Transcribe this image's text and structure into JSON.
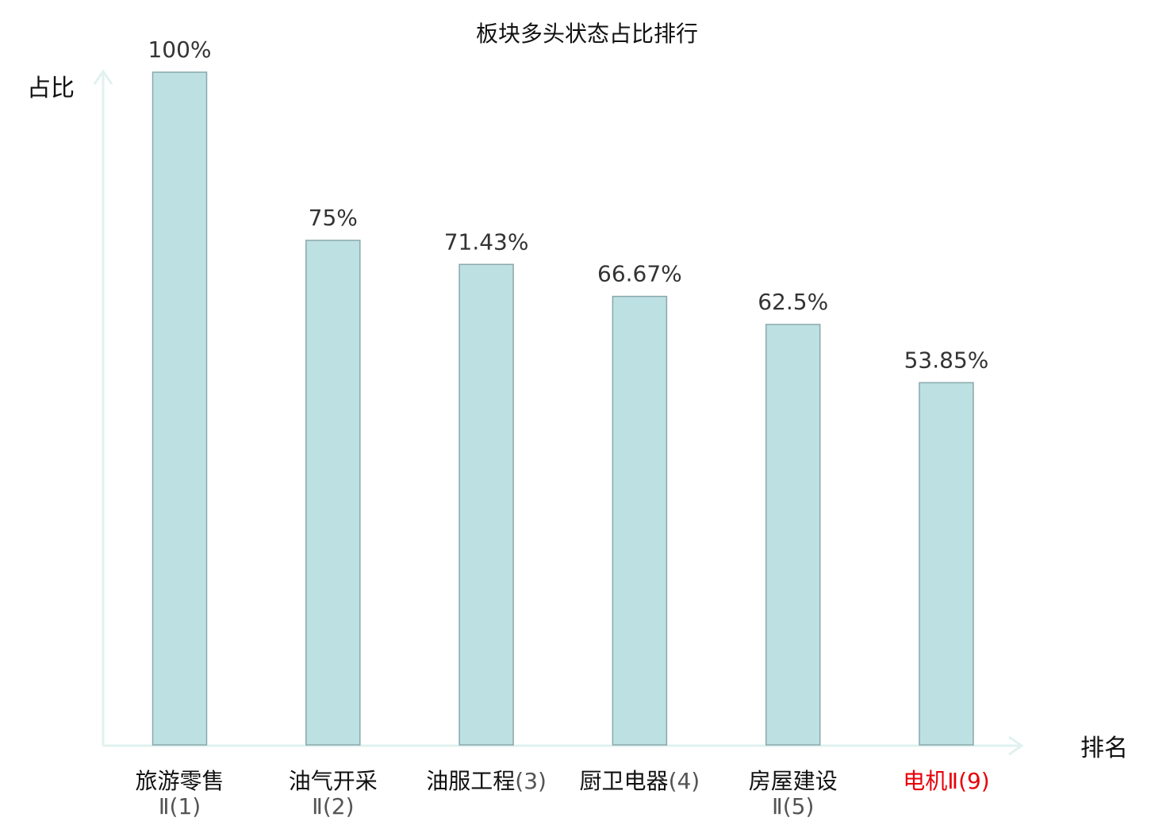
{
  "chart_data": {
    "type": "bar",
    "title": "板块多头状态占比排行",
    "ylabel": "占比",
    "xlabel": "排名",
    "ylim": [
      0,
      100
    ],
    "grid": false,
    "categories": [
      {
        "name": "旅游零售",
        "suffix": "Ⅱ(1)",
        "highlight": false
      },
      {
        "name": "油气开采",
        "suffix": "Ⅱ(2)",
        "highlight": false
      },
      {
        "name": "油服工程",
        "suffix": "(3)",
        "highlight": false
      },
      {
        "name": "厨卫电器",
        "suffix": "(4)",
        "highlight": false
      },
      {
        "name": "房屋建设",
        "suffix": "Ⅱ(5)",
        "highlight": false
      },
      {
        "name": "电机",
        "suffix": "Ⅱ(9)",
        "highlight": true
      }
    ],
    "values": [
      100,
      75,
      71.43,
      66.67,
      62.5,
      53.85
    ],
    "value_labels": [
      "100%",
      "75%",
      "71.43%",
      "66.67%",
      "62.5%",
      "53.85%"
    ],
    "colors": {
      "bar_fill": "#bde0e3",
      "bar_stroke": "#8aa8ab",
      "axis": "#e0f2ef",
      "highlight_text": "#e8000b"
    }
  }
}
